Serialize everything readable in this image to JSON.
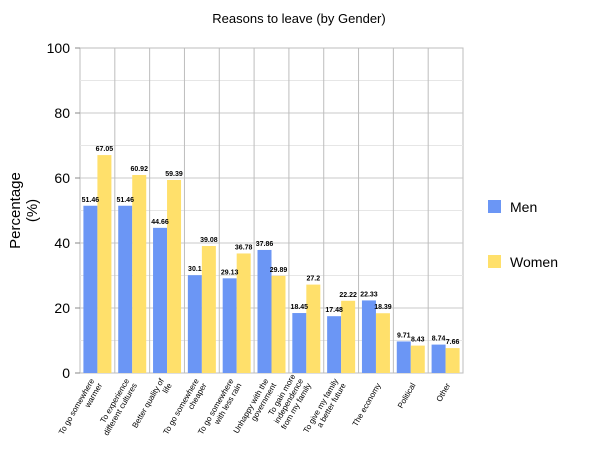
{
  "chart_data": {
    "type": "bar",
    "title": "Reasons to leave (by Gender)",
    "xlabel": "",
    "ylabel_lines": [
      "Percentage",
      "(%)"
    ],
    "ylim": [
      0,
      100
    ],
    "yticks": [
      0,
      20,
      40,
      60,
      80,
      100
    ],
    "grid": true,
    "legend_position": "right",
    "categories": [
      [
        "To go somewhere",
        "warmer"
      ],
      [
        "To experience",
        "different cultures"
      ],
      [
        "Better quality of",
        "life"
      ],
      [
        "To go somewhere",
        "cheaper"
      ],
      [
        "To go somewhere",
        "with less rain"
      ],
      [
        "Unhappy with the",
        "government"
      ],
      [
        "To gain more",
        "independence",
        "from my family"
      ],
      [
        "To give my family",
        "a better future"
      ],
      [
        "The economy"
      ],
      [
        "Political"
      ],
      [
        "Other"
      ]
    ],
    "series": [
      {
        "name": "Men",
        "color": "#6b96f5",
        "values": [
          51.46,
          51.46,
          44.66,
          30.1,
          29.13,
          37.86,
          18.45,
          17.48,
          22.33,
          9.71,
          8.74
        ],
        "labels": [
          "51.46",
          "51.46",
          "44.66",
          "30.1",
          "29.13",
          "37.86",
          "18.45",
          "17.48",
          "22.33",
          "9.71",
          "8.74"
        ]
      },
      {
        "name": "Women",
        "color": "#ffe06b",
        "values": [
          67.05,
          60.92,
          59.39,
          39.08,
          36.78,
          29.89,
          27.2,
          22.22,
          18.39,
          8.43,
          7.66
        ],
        "labels": [
          "67.05",
          "60.92",
          "59.39",
          "39.08",
          "36.78",
          "29.89",
          "27.2",
          "22.22",
          "18.39",
          "8.43",
          "7.66"
        ]
      }
    ]
  }
}
